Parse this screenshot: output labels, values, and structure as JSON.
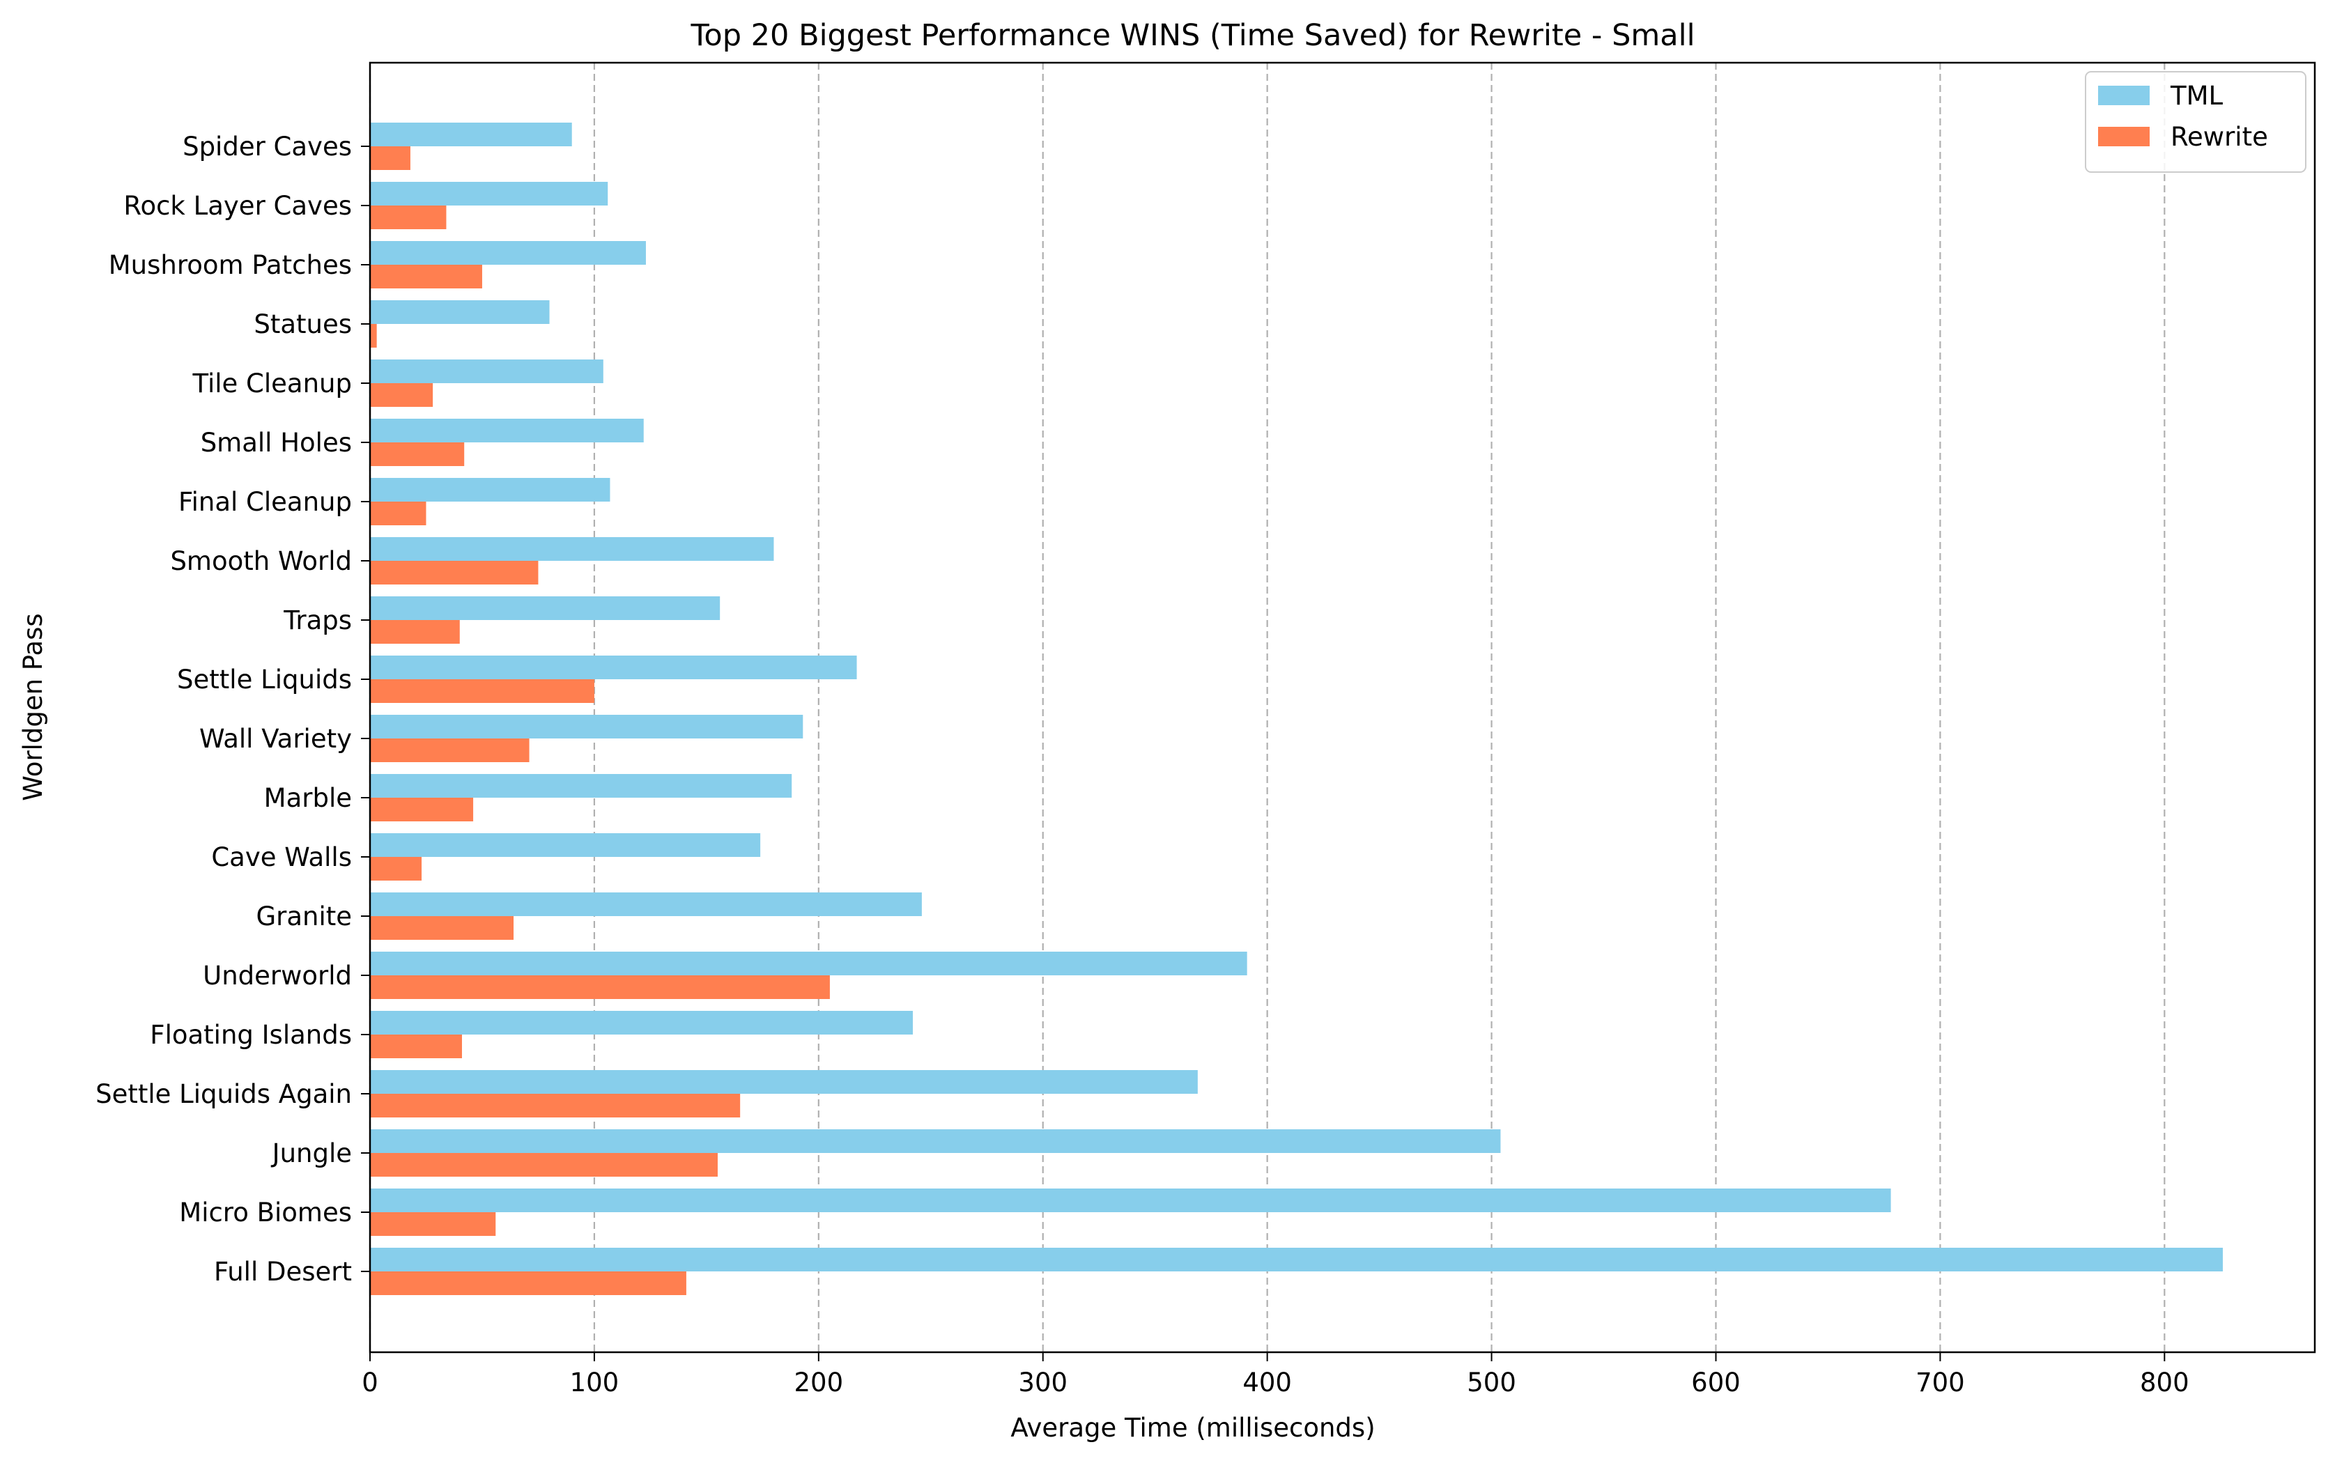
{
  "chart_data": {
    "type": "bar",
    "orientation": "horizontal",
    "title": "Top 20 Biggest Performance WINS (Time Saved) for Rewrite - Small",
    "xlabel": "Average Time (milliseconds)",
    "ylabel": "Worldgen Pass",
    "xlim": [
      0,
      867
    ],
    "xticks": [
      0,
      100,
      200,
      300,
      400,
      500,
      600,
      700,
      800
    ],
    "grid": "x-dashed",
    "legend_position": "top-right",
    "categories": [
      "Full Desert",
      "Micro Biomes",
      "Jungle",
      "Settle Liquids Again",
      "Floating Islands",
      "Underworld",
      "Granite",
      "Cave Walls",
      "Marble",
      "Wall Variety",
      "Settle Liquids",
      "Traps",
      "Smooth World",
      "Final Cleanup",
      "Small Holes",
      "Tile Cleanup",
      "Statues",
      "Mushroom Patches",
      "Rock Layer Caves",
      "Spider Caves"
    ],
    "series": [
      {
        "name": "TML",
        "color": "#87ceeb",
        "values": [
          826,
          678,
          504,
          369,
          242,
          391,
          246,
          174,
          188,
          193,
          217,
          156,
          180,
          107,
          122,
          104,
          80,
          123,
          106,
          90
        ]
      },
      {
        "name": "Rewrite",
        "color": "#ff7f50",
        "values": [
          141,
          56,
          155,
          165,
          41,
          205,
          64,
          23,
          46,
          71,
          100,
          40,
          75,
          25,
          42,
          28,
          3,
          50,
          34,
          18
        ]
      }
    ]
  }
}
